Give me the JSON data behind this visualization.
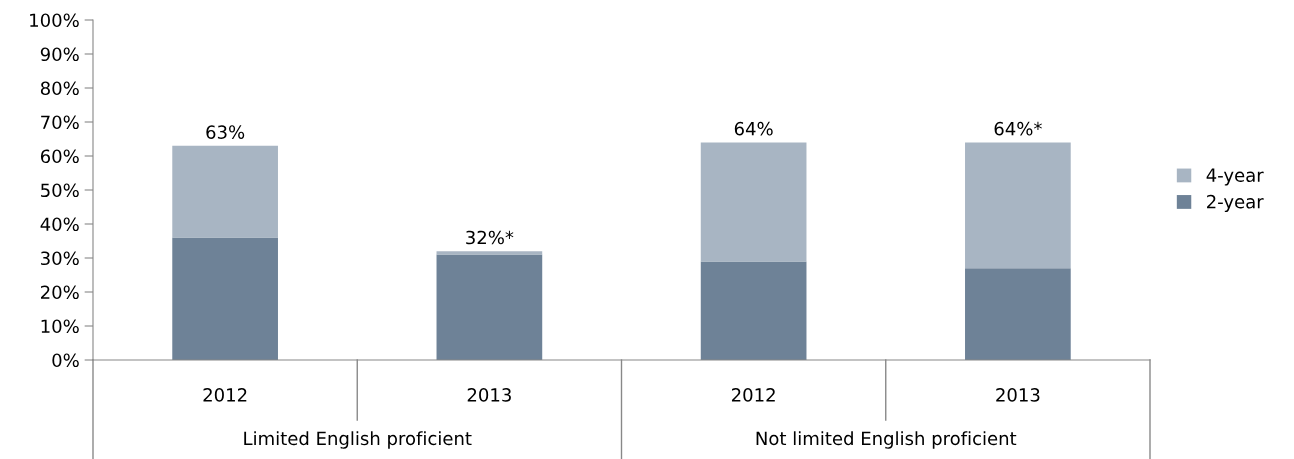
{
  "chart_data": {
    "type": "bar",
    "stacked": true,
    "categories": [
      "2012",
      "2013",
      "2012",
      "2013"
    ],
    "series": [
      {
        "name": "2-year",
        "color": "#6e8297",
        "values": [
          36,
          31,
          29,
          27
        ]
      },
      {
        "name": "4-year",
        "color": "#a8b5c3",
        "values": [
          27,
          1,
          35,
          37
        ]
      }
    ],
    "totals": [
      "63%",
      "32%*",
      "64%",
      "64%*"
    ],
    "annotations": [
      "Limited English proficient",
      "Not limited English proficient"
    ],
    "ylim": [
      0,
      100
    ],
    "yticks": [
      {
        "value": 0,
        "label": "0%"
      },
      {
        "value": 10,
        "label": "10%"
      },
      {
        "value": 20,
        "label": "20%"
      },
      {
        "value": 30,
        "label": "30%"
      },
      {
        "value": 40,
        "label": "40%"
      },
      {
        "value": 50,
        "label": "50%"
      },
      {
        "value": 60,
        "label": "60%"
      },
      {
        "value": 70,
        "label": "70%"
      },
      {
        "value": 80,
        "label": "80%"
      },
      {
        "value": 90,
        "label": "90%"
      },
      {
        "value": 100,
        "label": "100%"
      }
    ],
    "grid": false,
    "legend": "right"
  }
}
